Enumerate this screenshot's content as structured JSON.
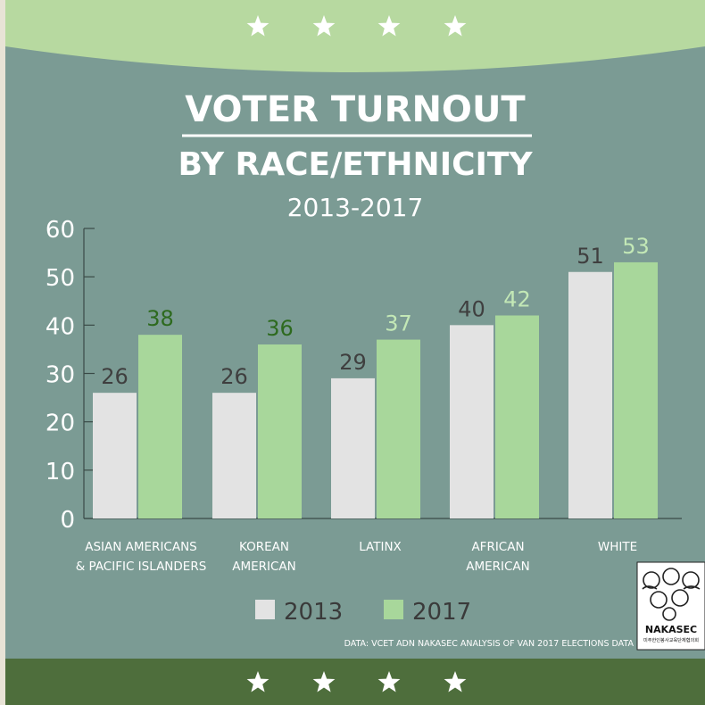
{
  "colors": {
    "background": "#7b9b94",
    "top_band": "#b7d9a0",
    "bottom_band": "#4e6e3c",
    "bar_2013": "#e3e3e3",
    "bar_2017": "#a8d79b",
    "label_2013": "#3f3f3f",
    "label_2017_dark": "#2d6a1e",
    "label_2017_light": "#c3e8b6"
  },
  "header": {
    "title_line1": "VOTER TURNOUT",
    "title_line2": "BY RACE/ETHNICITY",
    "subtitle": "2013-2017"
  },
  "chart_data": {
    "type": "bar",
    "categories": [
      [
        "ASIAN AMERICANS",
        "& PACIFIC ISLANDERS"
      ],
      [
        "KOREAN",
        "AMERICAN"
      ],
      [
        "LATINX"
      ],
      [
        "AFRICAN",
        "AMERICAN"
      ],
      [
        "WHITE"
      ]
    ],
    "series": [
      {
        "name": "2013",
        "values": [
          26,
          26,
          29,
          40,
          51
        ]
      },
      {
        "name": "2017",
        "values": [
          38,
          36,
          37,
          42,
          53
        ]
      }
    ],
    "ylim": [
      0,
      60
    ],
    "yticks": [
      0,
      10,
      20,
      30,
      40,
      50,
      60
    ],
    "legend_position": "bottom-center",
    "grid": false
  },
  "legend": [
    {
      "label": "2013"
    },
    {
      "label": "2017"
    }
  ],
  "source": "DATA: VCET ADN NAKASEC ANALYSIS OF VAN 2017 ELECTIONS DATA",
  "logo": {
    "name": "NAKASEC",
    "korean": "미주한인봉사교육단체협의회"
  },
  "decor": {
    "top_stars": 4,
    "bottom_stars": 4
  }
}
